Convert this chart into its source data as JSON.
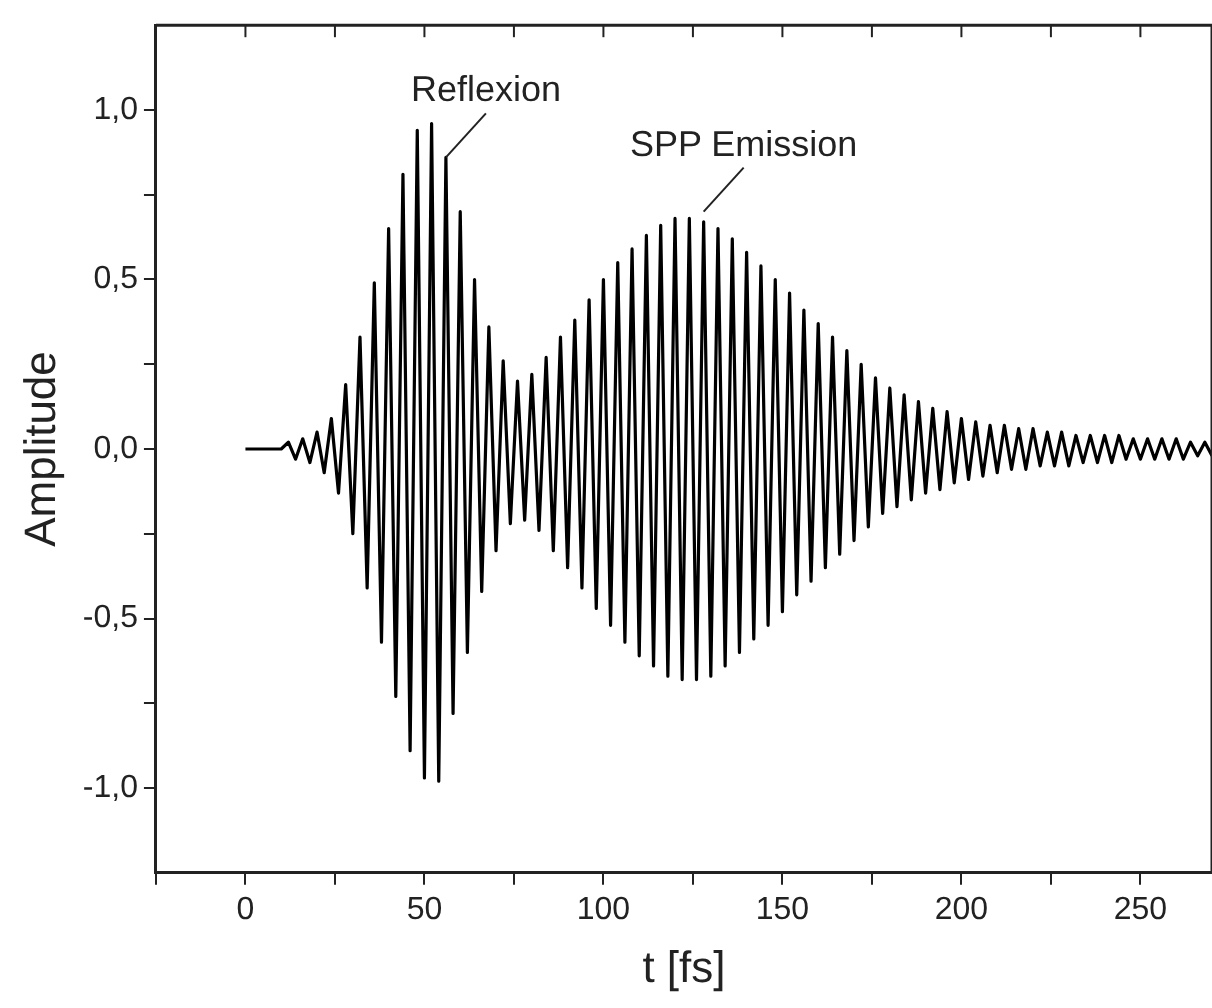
{
  "chart_data": {
    "type": "line",
    "xlabel": "t [fs]",
    "ylabel": "Amplitude",
    "grid": false,
    "legend": false,
    "marker": "none",
    "line_style": "solid",
    "xlim": [
      -25,
      270
    ],
    "xticks": [
      {
        "value": -25,
        "label": null
      },
      0,
      {
        "value": 25,
        "label": null
      },
      50,
      {
        "value": 75,
        "label": null
      },
      100,
      {
        "value": 125,
        "label": null
      },
      150,
      {
        "value": 175,
        "label": null
      },
      200,
      {
        "value": 225,
        "label": null
      },
      250
    ],
    "ylim": [
      -1.25,
      1.25
    ],
    "yticks": [
      {
        "value": -1,
        "label": "-1,0"
      },
      {
        "value": -0.75,
        "label": null
      },
      {
        "value": -0.5,
        "label": "-0,5"
      },
      {
        "value": -0.25,
        "label": null
      },
      {
        "value": 0,
        "label": "0,0"
      },
      {
        "value": 0.25,
        "label": null
      },
      {
        "value": 0.5,
        "label": "0,5"
      },
      {
        "value": 0.75,
        "label": null
      },
      {
        "value": 1,
        "label": "1,0"
      }
    ],
    "annotations": [
      {
        "text": "Reflexion",
        "x": 56,
        "y": 0.86
      },
      {
        "text": "SPP Emission",
        "x": 128,
        "y": 0.7
      }
    ],
    "series": [
      {
        "color": "#000000",
        "x": [
          0,
          10,
          12,
          14,
          16,
          18,
          20,
          22,
          24,
          26,
          28,
          30,
          32,
          34,
          36,
          38,
          40,
          42,
          44,
          46,
          48,
          50,
          52,
          54,
          56,
          58,
          60,
          62,
          64,
          66,
          68,
          70,
          72,
          74,
          76,
          78,
          80,
          82,
          84,
          86,
          88,
          90,
          92,
          94,
          96,
          98,
          100,
          102,
          104,
          106,
          108,
          110,
          112,
          114,
          116,
          118,
          120,
          122,
          124,
          126,
          128,
          130,
          132,
          134,
          136,
          138,
          140,
          142,
          144,
          146,
          148,
          150,
          152,
          154,
          156,
          158,
          160,
          162,
          164,
          166,
          168,
          170,
          172,
          174,
          176,
          178,
          180,
          182,
          184,
          186,
          188,
          190,
          192,
          194,
          196,
          198,
          200,
          202,
          204,
          206,
          208,
          210,
          212,
          214,
          216,
          218,
          220,
          222,
          224,
          226,
          228,
          230,
          232,
          234,
          236,
          238,
          240,
          242,
          244,
          246,
          248,
          250,
          252,
          254,
          256,
          258,
          260,
          262,
          264,
          266,
          268,
          270
        ],
        "values": [
          0,
          0,
          0.02,
          -0.03,
          0.03,
          -0.04,
          0.05,
          -0.07,
          0.09,
          -0.13,
          0.19,
          -0.25,
          0.33,
          -0.41,
          0.49,
          -0.57,
          0.65,
          -0.73,
          0.81,
          -0.89,
          0.94,
          -0.97,
          0.96,
          -0.98,
          0.86,
          -0.78,
          0.7,
          -0.6,
          0.5,
          -0.42,
          0.36,
          -0.3,
          0.26,
          -0.22,
          0.2,
          -0.21,
          0.22,
          -0.24,
          0.27,
          -0.3,
          0.33,
          -0.35,
          0.38,
          -0.41,
          0.44,
          -0.47,
          0.5,
          -0.52,
          0.55,
          -0.57,
          0.59,
          -0.61,
          0.63,
          -0.64,
          0.66,
          -0.67,
          0.68,
          -0.68,
          0.68,
          -0.68,
          0.67,
          -0.67,
          0.65,
          -0.64,
          0.62,
          -0.6,
          0.58,
          -0.56,
          0.54,
          -0.52,
          0.5,
          -0.48,
          0.46,
          -0.43,
          0.41,
          -0.39,
          0.37,
          -0.35,
          0.33,
          -0.31,
          0.29,
          -0.27,
          0.25,
          -0.23,
          0.21,
          -0.19,
          0.18,
          -0.17,
          0.16,
          -0.15,
          0.14,
          -0.13,
          0.12,
          -0.12,
          0.11,
          -0.1,
          0.09,
          -0.09,
          0.08,
          -0.08,
          0.07,
          -0.07,
          0.07,
          -0.06,
          0.06,
          -0.06,
          0.06,
          -0.05,
          0.05,
          -0.05,
          0.05,
          -0.05,
          0.04,
          -0.04,
          0.04,
          -0.04,
          0.04,
          -0.04,
          0.04,
          -0.03,
          0.03,
          -0.03,
          0.03,
          -0.03,
          0.03,
          -0.03,
          0.03,
          -0.03,
          0.02,
          -0.02,
          0.02,
          -0.02
        ]
      }
    ]
  }
}
